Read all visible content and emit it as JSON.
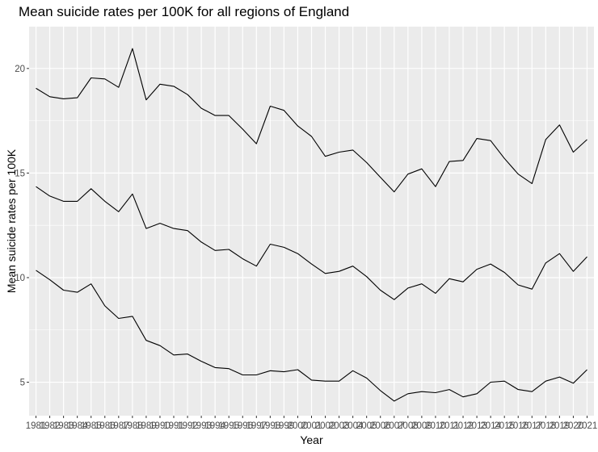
{
  "chart_data": {
    "type": "line",
    "title": "Mean suicide rates per 100K for all regions of England",
    "xlabel": "Year",
    "ylabel": "Mean suicide rates per 100K",
    "x": [
      1981,
      1982,
      1983,
      1984,
      1985,
      1986,
      1987,
      1988,
      1989,
      1990,
      1991,
      1992,
      1993,
      1994,
      1995,
      1996,
      1997,
      1998,
      1999,
      2000,
      2001,
      2002,
      2003,
      2004,
      2005,
      2006,
      2007,
      2008,
      2009,
      2010,
      2011,
      2012,
      2013,
      2014,
      2015,
      2016,
      2017,
      2018,
      2019,
      2020,
      2021
    ],
    "series": [
      {
        "values": [
          19.05,
          18.65,
          18.55,
          18.6,
          19.55,
          19.5,
          19.1,
          20.95,
          18.5,
          19.25,
          19.15,
          18.75,
          18.1,
          17.75,
          17.75,
          17.1,
          16.4,
          18.2,
          18.0,
          17.25,
          16.75,
          15.8,
          16.0,
          16.1,
          15.5,
          14.8,
          14.1,
          14.95,
          15.2,
          14.35,
          15.55,
          15.6,
          16.65,
          16.55,
          15.7,
          14.95,
          14.5,
          16.6,
          17.3,
          16.0,
          16.6
        ]
      },
      {
        "values": [
          14.35,
          13.9,
          13.65,
          13.65,
          14.25,
          13.65,
          13.15,
          14.0,
          12.35,
          12.6,
          12.35,
          12.25,
          11.7,
          11.3,
          11.35,
          10.9,
          10.55,
          11.6,
          11.45,
          11.15,
          10.65,
          10.2,
          10.3,
          10.55,
          10.05,
          9.4,
          8.95,
          9.5,
          9.7,
          9.25,
          9.95,
          9.8,
          10.4,
          10.65,
          10.25,
          9.65,
          9.45,
          10.7,
          11.15,
          10.3,
          11.0
        ]
      },
      {
        "values": [
          10.35,
          9.9,
          9.4,
          9.3,
          9.7,
          8.65,
          8.05,
          8.15,
          7.0,
          6.75,
          6.3,
          6.35,
          6.0,
          5.7,
          5.65,
          5.35,
          5.35,
          5.55,
          5.5,
          5.6,
          5.1,
          5.05,
          5.05,
          5.55,
          5.2,
          4.6,
          4.1,
          4.45,
          4.55,
          4.5,
          4.65,
          4.3,
          4.45,
          5.0,
          5.05,
          4.65,
          4.55,
          5.05,
          5.25,
          4.95,
          5.6
        ]
      }
    ],
    "y_ticks": [
      5,
      10,
      15,
      20
    ],
    "x_tick_labels": [
      "1981",
      "1982",
      "1983",
      "1984",
      "1985",
      "1986",
      "1987",
      "1988",
      "1989",
      "1990",
      "1991",
      "1992",
      "1993",
      "1994",
      "1995",
      "1996",
      "1997",
      "1998",
      "1999",
      "2000",
      "2001",
      "2002",
      "2003",
      "2004",
      "2005",
      "2006",
      "2007",
      "2008",
      "2009",
      "2010",
      "2011",
      "2012",
      "2013",
      "2014",
      "2015",
      "2016",
      "2017",
      "2018",
      "2019",
      "2020",
      "2021"
    ],
    "xlim": [
      1980.5,
      2021.5
    ],
    "ylim": [
      3.4,
      22.0
    ],
    "grid": true,
    "legend": "none",
    "colors": {
      "panel": "#ebebeb",
      "grid_major": "#ffffff",
      "line": "#000000"
    }
  }
}
